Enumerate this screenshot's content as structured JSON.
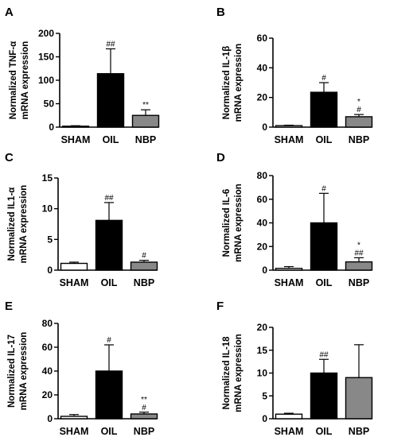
{
  "colors": {
    "sham": "#ffffff",
    "oil": "#000000",
    "nbp": "#888888",
    "axis": "#000000"
  },
  "chart_data": [
    {
      "type": "bar",
      "panel": "A",
      "ylabel_lines": [
        "Normalized TNF-α",
        "mRNA expression"
      ],
      "categories": [
        "SHAM",
        "OIL",
        "NBP"
      ],
      "values": [
        2,
        114,
        25
      ],
      "errors": [
        1,
        53,
        12
      ],
      "ylim": [
        0,
        200
      ],
      "yticks": [
        "0",
        "50",
        "100",
        "150",
        "200"
      ],
      "yticks_values": [
        0,
        50,
        100,
        150,
        200
      ],
      "annotations": [
        [],
        [
          "##"
        ],
        [
          "**"
        ]
      ]
    },
    {
      "type": "bar",
      "panel": "B",
      "ylabel_lines": [
        "Normalized IL-1β",
        "mRNA expression"
      ],
      "categories": [
        "SHAM",
        "OIL",
        "NBP"
      ],
      "values": [
        1,
        23.5,
        7
      ],
      "errors": [
        0.3,
        6.5,
        1.5
      ],
      "ylim": [
        0,
        60
      ],
      "yticks": [
        "0",
        "20",
        "40",
        "60"
      ],
      "yticks_values": [
        0,
        20,
        40,
        60
      ],
      "annotations": [
        [],
        [
          "#"
        ],
        [
          "#",
          "*"
        ]
      ]
    },
    {
      "type": "bar",
      "panel": "C",
      "ylabel_lines": [
        "Normalized IL1-α",
        "mRNA expression"
      ],
      "categories": [
        "SHAM",
        "OIL",
        "NBP"
      ],
      "values": [
        1.1,
        8.1,
        1.3
      ],
      "errors": [
        0.2,
        2.9,
        0.3
      ],
      "ylim": [
        0,
        15
      ],
      "yticks": [
        "0",
        "5",
        "10",
        "15"
      ],
      "yticks_values": [
        0,
        5,
        10,
        15
      ],
      "annotations": [
        [],
        [
          "##"
        ],
        [
          "#"
        ]
      ]
    },
    {
      "type": "bar",
      "panel": "D",
      "ylabel_lines": [
        "Normalized IL-6",
        "mRNA expression"
      ],
      "categories": [
        "SHAM",
        "OIL",
        "NBP"
      ],
      "values": [
        1.5,
        40,
        7
      ],
      "errors": [
        1.5,
        25,
        3.5
      ],
      "ylim": [
        0,
        80
      ],
      "yticks": [
        "0",
        "20",
        "40",
        "60",
        "80"
      ],
      "yticks_values": [
        0,
        20,
        40,
        60,
        80
      ],
      "annotations": [
        [],
        [
          "#"
        ],
        [
          "##",
          "*"
        ]
      ]
    },
    {
      "type": "bar",
      "panel": "E",
      "ylabel_lines": [
        "Normalized IL-17",
        "mRNA expression"
      ],
      "categories": [
        "SHAM",
        "OIL",
        "NBP"
      ],
      "values": [
        2,
        40,
        4
      ],
      "errors": [
        1.5,
        22,
        1.5
      ],
      "ylim": [
        0,
        80
      ],
      "yticks": [
        "0",
        "20",
        "40",
        "60",
        "80"
      ],
      "yticks_values": [
        0,
        20,
        40,
        60,
        80
      ],
      "annotations": [
        [],
        [
          "#"
        ],
        [
          "#",
          "**"
        ]
      ]
    },
    {
      "type": "bar",
      "panel": "F",
      "ylabel_lines": [
        "Normalized IL-18",
        "mRNA expression"
      ],
      "categories": [
        "SHAM",
        "OIL",
        "NBP"
      ],
      "values": [
        1,
        10,
        9
      ],
      "errors": [
        0.2,
        3,
        7.2
      ],
      "ylim": [
        0,
        20
      ],
      "yticks": [
        "0",
        "5",
        "10",
        "15",
        "20"
      ],
      "yticks_values": [
        0,
        5,
        10,
        15,
        20
      ],
      "annotations": [
        [],
        [
          "##"
        ],
        []
      ]
    }
  ]
}
